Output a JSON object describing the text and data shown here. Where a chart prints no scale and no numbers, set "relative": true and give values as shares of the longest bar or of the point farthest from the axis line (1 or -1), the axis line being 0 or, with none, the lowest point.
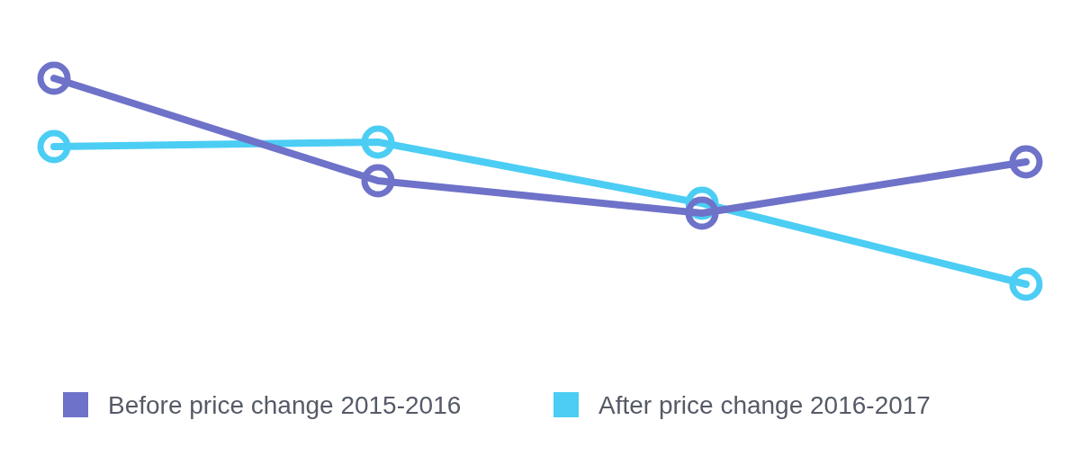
{
  "chart_data": {
    "type": "line",
    "relative": true,
    "categories": [
      null,
      null,
      null,
      null
    ],
    "series": [
      {
        "name": "Before price change 2015-2016",
        "color": "#6e72c8",
        "values": [
          1,
          0.502,
          0.345,
          0.594
        ]
      },
      {
        "name": "After price change 2016-2017",
        "color": "#4ccdf4",
        "values": [
          0.668,
          0.69,
          0.393,
          0
        ]
      }
    ],
    "marker": "circle",
    "legend": "bottom",
    "line_style": "solid"
  }
}
